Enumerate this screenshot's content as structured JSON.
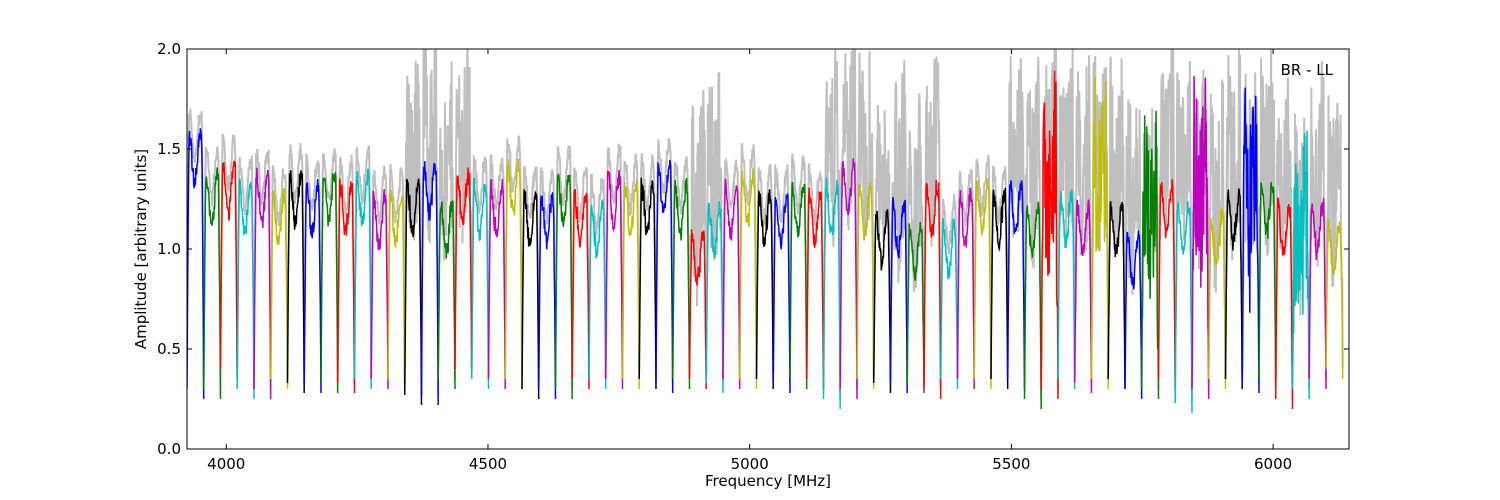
{
  "chart_data": {
    "type": "line",
    "title": "",
    "annotation": "BR - LL",
    "xlabel": "Frequency [MHz]",
    "ylabel": "Amplitude [arbitrary units]",
    "xlim": [
      3925,
      6145
    ],
    "ylim": [
      0.0,
      2.0
    ],
    "xticks": [
      4000,
      4500,
      5000,
      5500,
      6000
    ],
    "xtick_labels": [
      "4000",
      "4500",
      "5000",
      "5500",
      "6000"
    ],
    "yticks": [
      0.0,
      0.5,
      1.0,
      1.5,
      2.0
    ],
    "ytick_labels": [
      "0.0",
      "0.5",
      "1.0",
      "1.5",
      "2.0"
    ],
    "grid": false,
    "background_series_color": "#bfbfbf",
    "channel_colors": [
      "#0000ff",
      "#008000",
      "#ff0000",
      "#00bfbf",
      "#bf00bf",
      "#bfbf00",
      "#000000"
    ],
    "channel_width_mhz": 32,
    "channel_starts_mhz": [
      3925,
      3957,
      3989,
      4021,
      4053,
      4085,
      4117,
      4149,
      4181,
      4213,
      4245,
      4277,
      4309,
      4341,
      4373,
      4405,
      4437,
      4469,
      4501,
      4533,
      4565,
      4597,
      4629,
      4661,
      4693,
      4725,
      4757,
      4789,
      4821,
      4853,
      4885,
      4917,
      4949,
      4981,
      5013,
      5045,
      5077,
      5109,
      5141,
      5173,
      5205,
      5237,
      5269,
      5301,
      5333,
      5365,
      5397,
      5429,
      5461,
      5493,
      5525,
      5557,
      5589,
      5621,
      5653,
      5685,
      5717,
      5749,
      5781,
      5813,
      5845,
      5877,
      5909,
      5941,
      5973,
      6005,
      6037,
      6069,
      6101
    ],
    "channel_levels": [
      1.45,
      1.25,
      1.3,
      1.2,
      1.25,
      1.15,
      1.25,
      1.2,
      1.25,
      1.2,
      1.25,
      1.15,
      1.15,
      1.2,
      1.3,
      1.1,
      1.25,
      1.2,
      1.2,
      1.3,
      1.15,
      1.15,
      1.25,
      1.15,
      1.1,
      1.25,
      1.2,
      1.2,
      1.3,
      1.2,
      0.95,
      1.1,
      1.2,
      1.25,
      1.15,
      1.15,
      1.2,
      1.15,
      1.2,
      1.3,
      1.2,
      1.05,
      1.1,
      1.0,
      1.2,
      1.0,
      1.15,
      1.2,
      1.15,
      1.2,
      1.1,
      1.2,
      1.15,
      1.1,
      1.2,
      1.1,
      0.95,
      1.0,
      1.2,
      1.1,
      1.15,
      1.05,
      1.15,
      1.1,
      1.2,
      1.1,
      0.9,
      1.1,
      1.0
    ],
    "channel_min_values": [
      0.25,
      0.25,
      0.35,
      0.25,
      0.25,
      0.3,
      0.28,
      0.28,
      0.28,
      0.28,
      0.3,
      0.3,
      0.3,
      0.22,
      0.22,
      0.3,
      0.35,
      0.3,
      0.3,
      0.3,
      0.25,
      0.25,
      0.25,
      0.3,
      0.3,
      0.3,
      0.3,
      0.3,
      0.28,
      0.3,
      0.3,
      0.28,
      0.3,
      0.3,
      0.3,
      0.28,
      0.3,
      0.3,
      0.2,
      0.25,
      0.3,
      0.28,
      0.28,
      0.28,
      0.25,
      0.3,
      0.3,
      0.3,
      0.3,
      0.3,
      0.2,
      0.25,
      0.3,
      0.28,
      0.3,
      0.3,
      0.25,
      0.25,
      0.3,
      0.18,
      0.25,
      0.3,
      0.3,
      0.28,
      0.3,
      0.2,
      0.25,
      0.3,
      0.35
    ]
  }
}
